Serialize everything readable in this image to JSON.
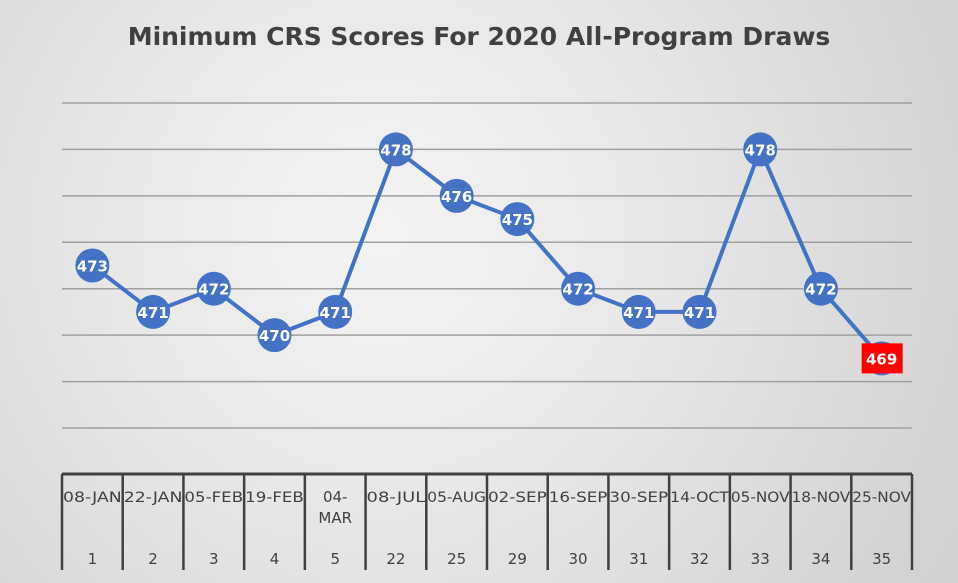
{
  "chart_data": {
    "type": "line",
    "title": "Minimum CRS Scores For 2020 All-Program Draws",
    "categories": [
      "08-JAN",
      "22-JAN",
      "05-FEB",
      "19-FEB",
      "04-MAR",
      "08-JUL",
      "05-AUG",
      "02-SEP",
      "16-SEP",
      "30-SEP",
      "14-OCT",
      "05-NOV",
      "18-NOV",
      "25-NOV"
    ],
    "draw_numbers": [
      "1",
      "2",
      "3",
      "4",
      "5",
      "22",
      "25",
      "29",
      "30",
      "31",
      "32",
      "33",
      "34",
      "35"
    ],
    "values": [
      473,
      471,
      472,
      470,
      471,
      478,
      476,
      475,
      472,
      471,
      471,
      478,
      472,
      469
    ],
    "ylim": [
      466,
      480
    ],
    "y_grid_step": 2,
    "grid": true,
    "y_tick_labels_shown": false,
    "line_color": "#4472C4",
    "highlight_last_color": "#FF0000",
    "xlabel": "",
    "ylabel": ""
  }
}
